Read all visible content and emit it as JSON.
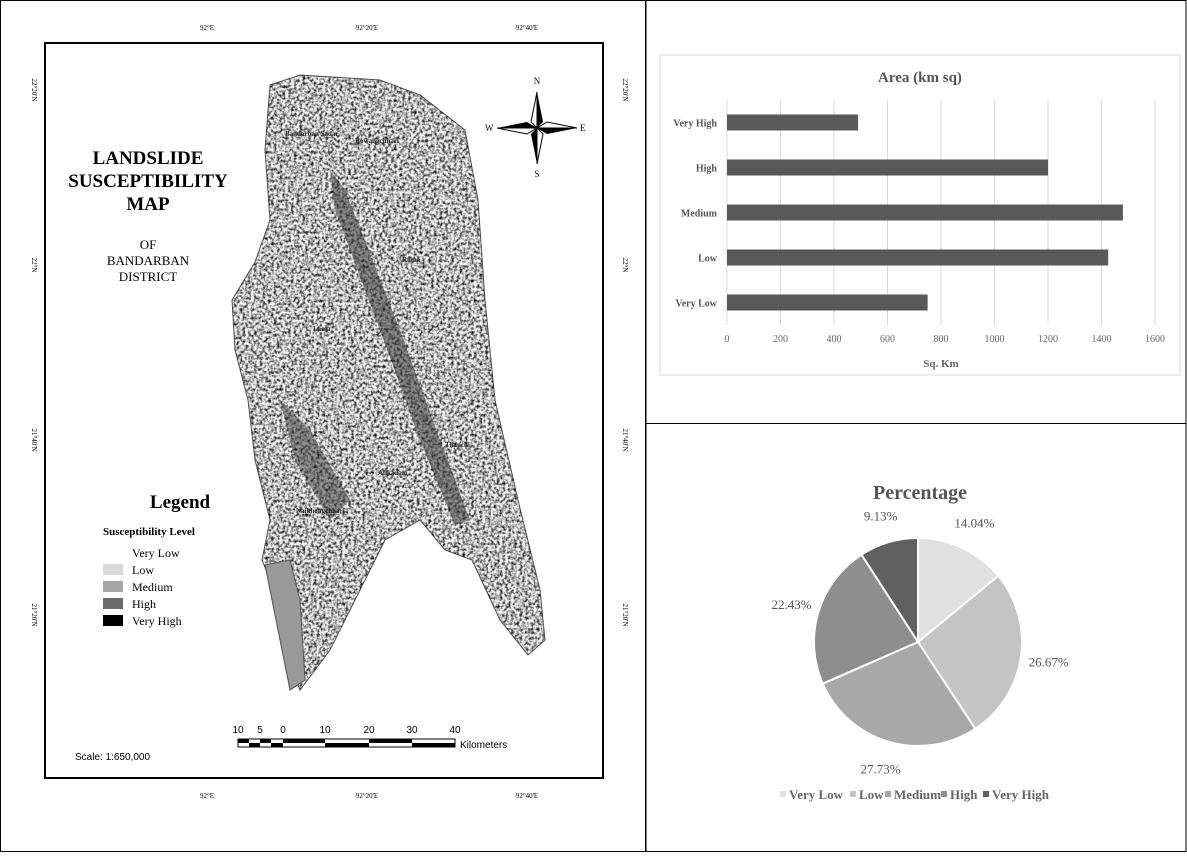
{
  "map": {
    "title": [
      "LANDSLIDE",
      "SUSCEPTIBILITY",
      "MAP"
    ],
    "subtitle": [
      "OF",
      "BANDARBAN",
      "DISTRICT"
    ],
    "legend_title": "Legend",
    "legend_subtitle": "Susceptibility Level",
    "legend": [
      {
        "label": "Very Low",
        "color": "#ffffff"
      },
      {
        "label": "Low",
        "color": "#d9d9d9"
      },
      {
        "label": "Medium",
        "color": "#a6a6a6"
      },
      {
        "label": "High",
        "color": "#6b6b6b"
      },
      {
        "label": "Very High",
        "color": "#000000"
      }
    ],
    "longitudes": [
      "92°E",
      "92°20'E",
      "92°40'E"
    ],
    "latitudes": [
      "22°20'N",
      "22°N",
      "21°40'N",
      "21°20'N"
    ],
    "places": [
      "Bandarban Sadar",
      "Rowangchhari",
      "Ruma",
      "Lama",
      "Thanchi",
      "Alikadam",
      "Naikhongchhari"
    ],
    "compass": {
      "n": "N",
      "s": "S",
      "e": "E",
      "w": "W"
    },
    "scale_numbers": [
      "10",
      "5",
      "0",
      "10",
      "20",
      "30",
      "40"
    ],
    "scale_unit": "Kilometers",
    "scale": "Scale: 1:650,000"
  },
  "chart_data": [
    {
      "type": "hbar",
      "title": "Area (km sq)",
      "xlabel": "Sq. Km",
      "categories": [
        "Very Low",
        "Low",
        "Medium",
        "High",
        "Very High"
      ],
      "values": [
        750,
        1425,
        1480,
        1200,
        490
      ],
      "color": "#595959",
      "xlim": [
        0,
        1600
      ],
      "xticks": [
        0,
        200,
        400,
        600,
        800,
        1000,
        1200,
        1400,
        1600
      ],
      "grid": true
    },
    {
      "type": "pie",
      "title": "Percentage",
      "categories": [
        "Very Low",
        "Low",
        "Medium",
        "High",
        "Very High"
      ],
      "values": [
        14.04,
        26.67,
        27.73,
        22.43,
        9.13
      ],
      "value_labels": [
        "14.04%",
        "26.67%",
        "27.73%",
        "22.43%",
        "9.13%"
      ],
      "colors": [
        "#e0e0e0",
        "#c4c4c4",
        "#a8a8a8",
        "#8e8e8e",
        "#606060"
      ],
      "legend": "bottom"
    }
  ]
}
